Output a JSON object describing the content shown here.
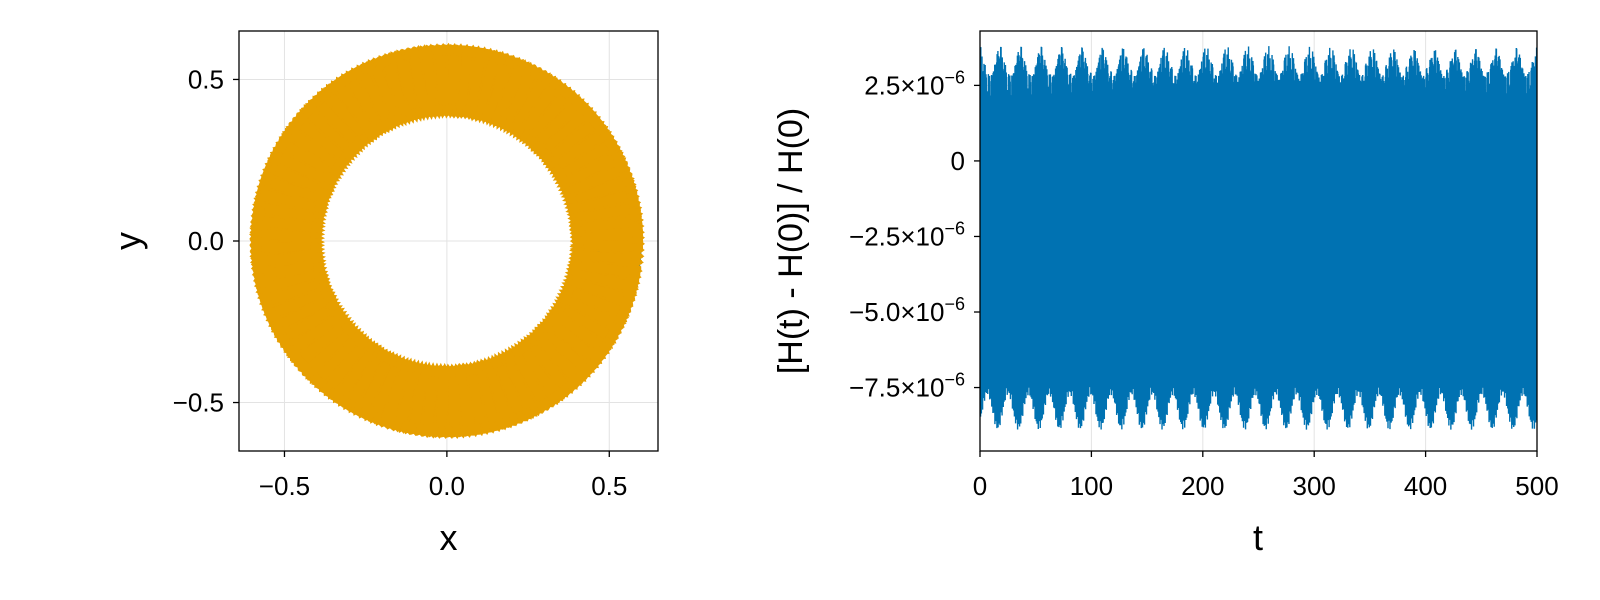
{
  "chart_data": [
    {
      "type": "scatter",
      "xlabel": "x",
      "ylabel": "y",
      "xlim": [
        -0.64,
        0.65
      ],
      "ylim": [
        -0.65,
        0.65
      ],
      "xticks": [
        -0.5,
        0.0,
        0.5
      ],
      "xtick_labels": [
        "−0.5",
        "0.0",
        "0.5"
      ],
      "yticks": [
        -0.5,
        0.0,
        0.5
      ],
      "ytick_labels": [
        "−0.5",
        "0.0",
        "0.5"
      ],
      "grid": true,
      "series": [
        {
          "color": "#0072b2",
          "inner_radius": 0.39,
          "outer_radius": 0.6,
          "loops": 40
        },
        {
          "color": "#e69f00",
          "inner_radius": 0.39,
          "outer_radius": 0.6,
          "loops": 40
        }
      ]
    },
    {
      "type": "line",
      "xlabel": "t",
      "ylabel": "[H(t) - H(0)] / H(0)",
      "xlim": [
        0,
        500
      ],
      "ylim": [
        -9.6e-06,
        4.3e-06
      ],
      "xticks": [
        0,
        100,
        200,
        300,
        400,
        500
      ],
      "xtick_labels": [
        "0",
        "100",
        "200",
        "300",
        "400",
        "500"
      ],
      "yticks": [
        2.5e-06,
        0,
        -2.5e-06,
        -5e-06,
        -7.5e-06
      ],
      "ytick_labels": [
        {
          "base": "2.5×10",
          "exp": "−6"
        },
        {
          "base": "0",
          "exp": ""
        },
        {
          "base": "−2.5×10",
          "exp": "−6"
        },
        {
          "base": "−5.0×10",
          "exp": "−6"
        },
        {
          "base": "−7.5×10",
          "exp": "−6"
        }
      ],
      "grid": true,
      "series": [
        {
          "color": "#0072b2",
          "oscillation": {
            "center": -2.2e-06,
            "upper_min": 2e-06,
            "upper_max": 3.8e-06,
            "lower_min": -6.8e-06,
            "lower_max": -8.9e-06,
            "beat_period": 18.5
          }
        }
      ]
    }
  ]
}
